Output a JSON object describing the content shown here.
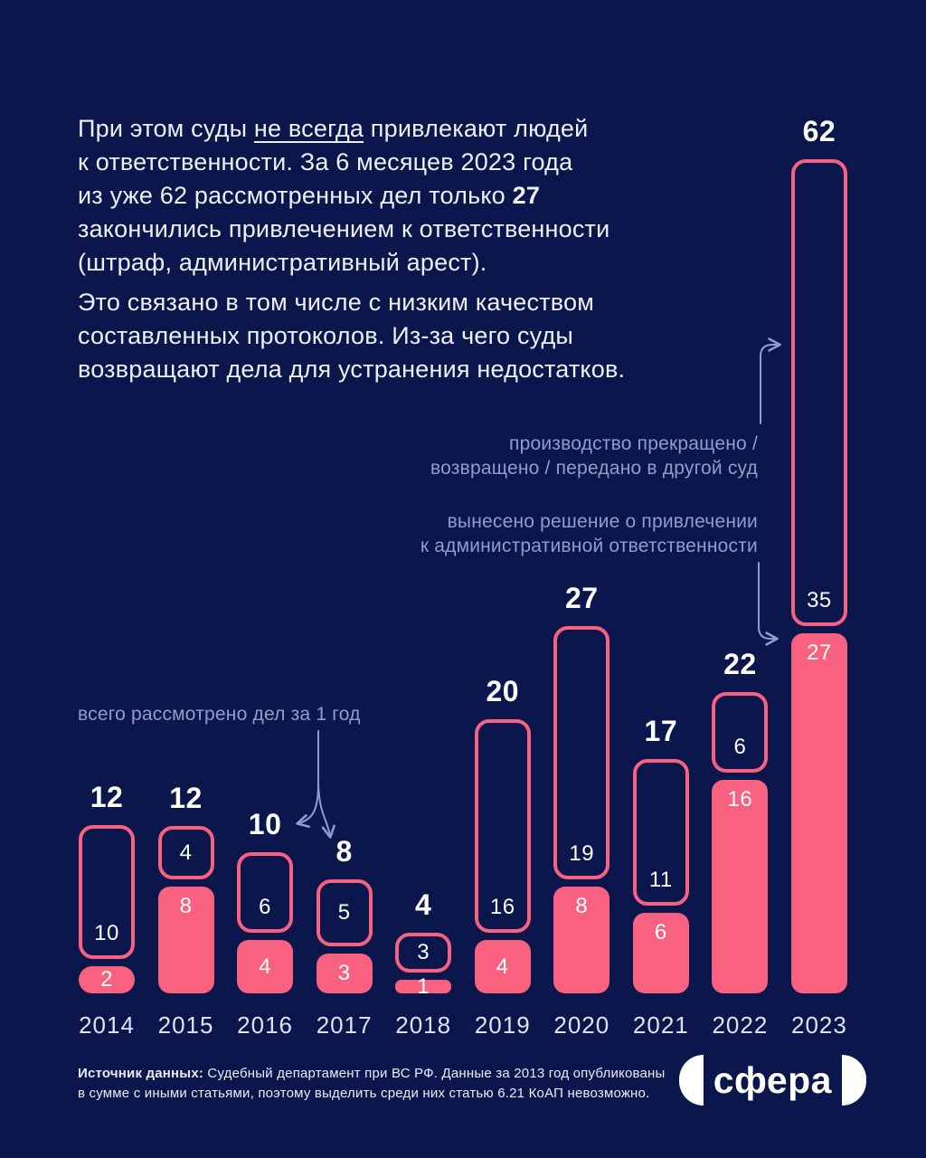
{
  "colors": {
    "background": "#0B164D",
    "accent_pink": "#F8617F",
    "text_white": "#EDF0F7",
    "text_muted_blue": "#939CC8"
  },
  "intro_p1": {
    "l1a": "При этом суды ",
    "l1u": "не всегда",
    "l1b": " привлекают людей",
    "l2": "к ответственности. За 6 месяцев 2023 года",
    "l3a": "из уже 62 рассмотренных дел только ",
    "l3b": "27",
    "l4": "закончились привлечением к ответственности",
    "l5": "(штраф, административный арест)."
  },
  "intro_p2": {
    "l1": "Это связано в том числе с низким качеством",
    "l2": "составленных протоколов. Из-за чего суды",
    "l3": "возвращают дела для устранения недостатков."
  },
  "annotations": {
    "dismissed_l1": "производство прекращено /",
    "dismissed_l2": "возвращено / передано в другой суд",
    "decided_l1": "вынесено решение о привлечении",
    "decided_l2": "к административной ответственности",
    "total": "всего рассмотрено дел за 1 год"
  },
  "chart_data": {
    "type": "bar",
    "stacked": true,
    "grid": false,
    "legend_position": "annotations-with-arrows",
    "categories": [
      "2014",
      "2015",
      "2016",
      "2017",
      "2018",
      "2019",
      "2020",
      "2021",
      "2022",
      "2023"
    ],
    "totals": [
      12,
      12,
      10,
      8,
      4,
      20,
      27,
      17,
      22,
      62
    ],
    "totals_label": "всего рассмотрено дел за 1 год",
    "series": [
      {
        "name": "производство прекращено / возвращено / передано в другой суд",
        "style": "outline",
        "values": [
          10,
          4,
          6,
          5,
          3,
          16,
          19,
          11,
          6,
          35
        ]
      },
      {
        "name": "вынесено решение о привлечении к административной ответственности",
        "style": "filled",
        "values": [
          2,
          8,
          4,
          3,
          1,
          4,
          8,
          6,
          16,
          27
        ]
      }
    ]
  },
  "source": {
    "label_bold": "Источник данных:",
    "line1_rest": " Судебный департамент при ВС РФ.  Данные за 2013 год опубликованы",
    "line2": "в сумме с иными статьями, поэтому выделить среди них статью 6.21 КоАП невозможно."
  },
  "logo": {
    "text": "сфера"
  }
}
